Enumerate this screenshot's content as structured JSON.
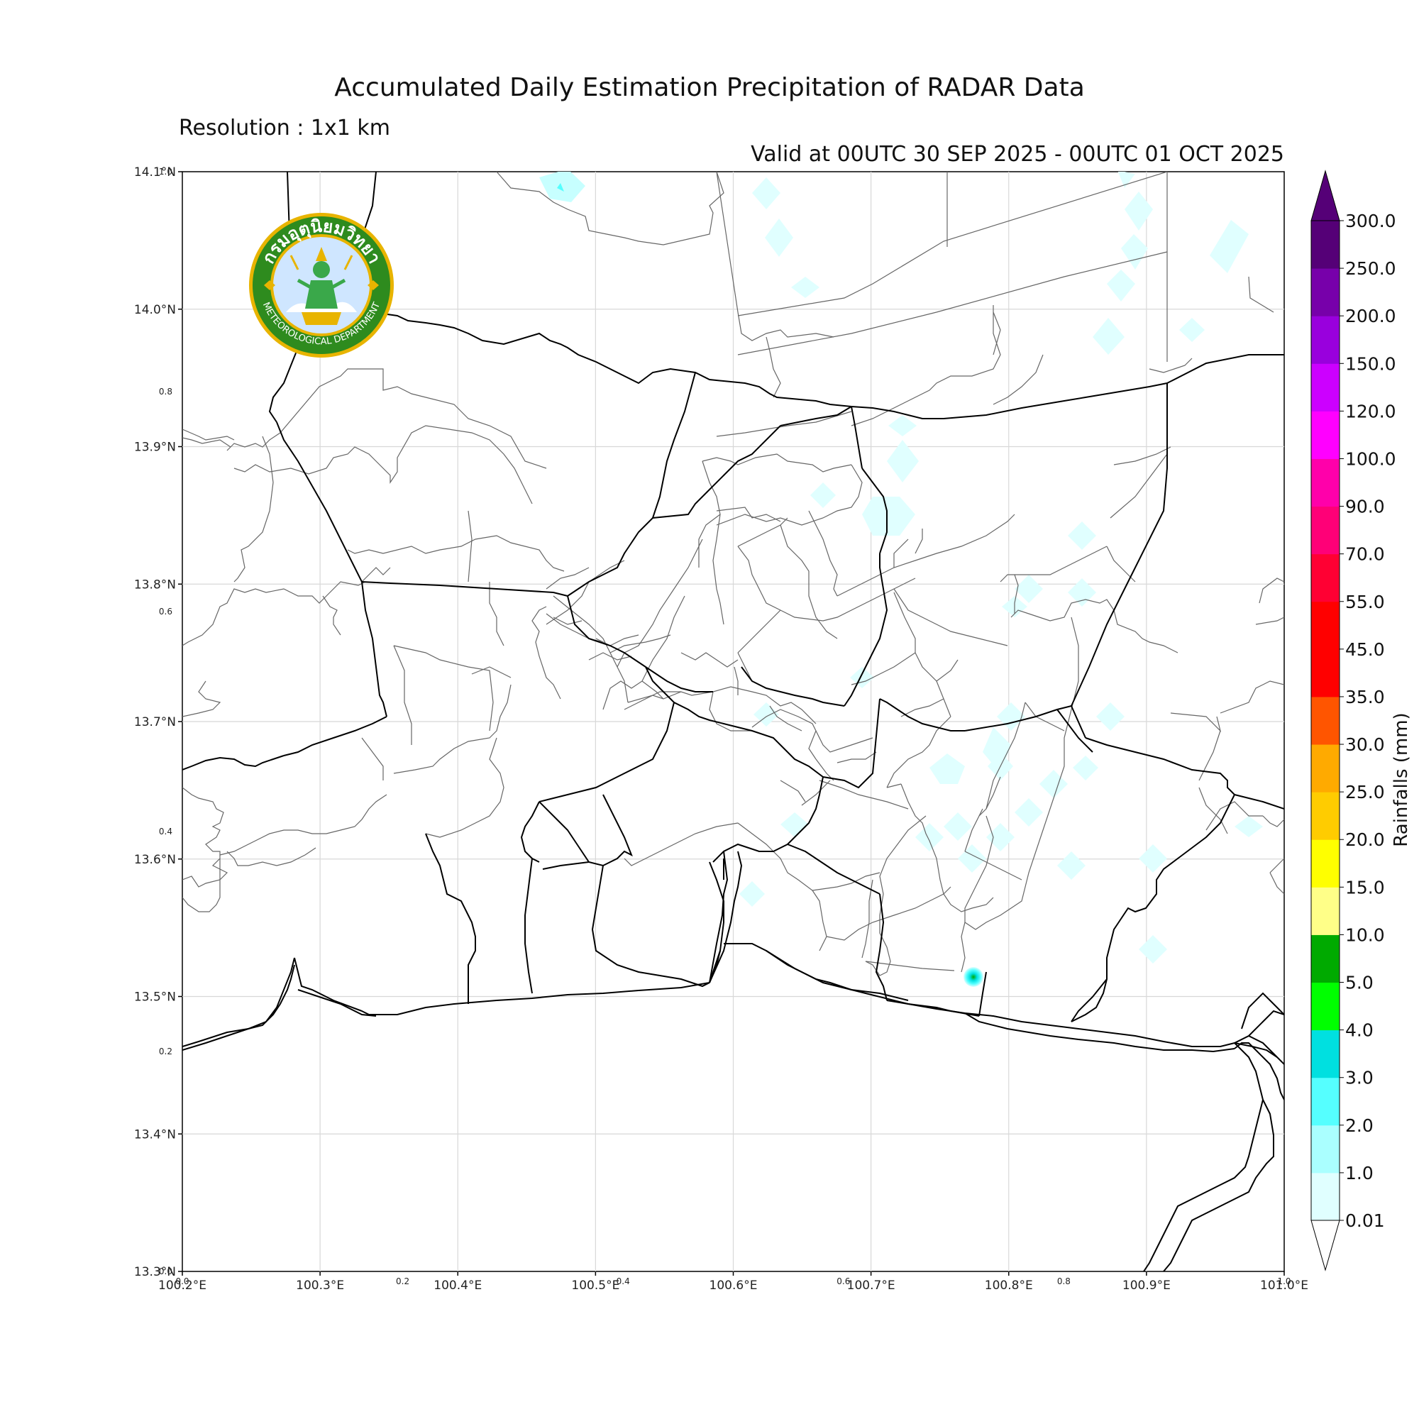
{
  "title": "Accumulated Daily Estimation Precipitation of RADAR Data",
  "resolution": "Resolution : 1x1 km",
  "valid": "Valid at 00UTC 30 SEP 2025 - 00UTC 01 OCT 2025",
  "logo": {
    "text_top": "กรมอุตุนิยมวิทยา",
    "text_bottom": "METEOROLOGICAL DEPARTMENT",
    "colors": {
      "ring": "#2e8b1e",
      "gold": "#e8b400",
      "inner": "#cfe6ff"
    }
  },
  "axes": {
    "lon_labels": [
      "100.2°E",
      "100.3°E",
      "100.4°E",
      "100.5°E",
      "100.6°E",
      "100.7°E",
      "100.8°E",
      "100.9°E",
      "101.0°E"
    ],
    "lat_labels": [
      "13.3°N",
      "13.4°N",
      "13.5°N",
      "13.6°N",
      "13.7°N",
      "13.8°N",
      "13.9°N",
      "14.0°N",
      "14.1°N"
    ],
    "lon_range": [
      100.2,
      101.0
    ],
    "lat_range": [
      13.3,
      14.1
    ],
    "frac_x_labels": [
      "0.0",
      "0.2",
      "0.4",
      "0.6",
      "0.8",
      "1.0"
    ],
    "frac_y_labels": [
      "0.0",
      "0.2",
      "0.4",
      "0.6",
      "0.8",
      "1.0"
    ],
    "grid": true
  },
  "colorbar": {
    "label": "Rainfalls (mm)",
    "levels": [
      "0.01",
      "1.0",
      "2.0",
      "3.0",
      "4.0",
      "5.0",
      "10.0",
      "15.0",
      "20.0",
      "25.0",
      "30.0",
      "35.0",
      "45.0",
      "55.0",
      "70.0",
      "90.0",
      "100.0",
      "120.0",
      "150.0",
      "200.0",
      "250.0",
      "300.0"
    ],
    "colors": [
      "#e0ffff",
      "#aaffff",
      "#55ffff",
      "#00e0e0",
      "#00ff00",
      "#00aa00",
      "#ffff88",
      "#ffff00",
      "#ffcc00",
      "#ffaa00",
      "#ff5500",
      "#ff0000",
      "#ff0000",
      "#ff0033",
      "#ff0077",
      "#ff00aa",
      "#ff00ff",
      "#cc00ff",
      "#9900dd",
      "#7700aa",
      "#550077"
    ],
    "extend": "both"
  }
}
